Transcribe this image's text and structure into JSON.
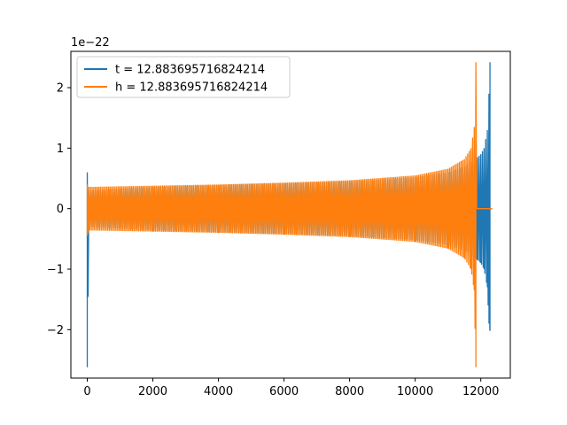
{
  "chart_data": {
    "type": "line",
    "title": "",
    "xlabel": "",
    "ylabel": "",
    "xlim": [
      -500,
      12900
    ],
    "ylim": [
      -2.8,
      2.6
    ],
    "y_scale_label": "1e−22",
    "x_ticks": [
      0,
      2000,
      4000,
      6000,
      8000,
      10000,
      12000
    ],
    "y_ticks": [
      -2,
      -1,
      0,
      1,
      2
    ],
    "x_tick_labels": [
      "0",
      "2000",
      "4000",
      "6000",
      "8000",
      "10000",
      "12000"
    ],
    "y_tick_labels": [
      "−2",
      "−1",
      "0",
      "1",
      "2"
    ],
    "grid": false,
    "legend_position": "top-left",
    "series": [
      {
        "name": "t = 12.883695716824214",
        "color": "#1f77b4",
        "envelope": {
          "x": [
            0,
            50,
            2000,
            4000,
            6000,
            8000,
            10000,
            11000,
            11500,
            11850,
            11900,
            12000,
            12100,
            12200,
            12250,
            12280,
            12290
          ],
          "upper": [
            0.6,
            0.3,
            0.36,
            0.39,
            0.42,
            0.45,
            0.52,
            0.6,
            0.7,
            0.82,
            0.85,
            0.9,
            1.0,
            1.3,
            1.9,
            2.42,
            0.0
          ],
          "lower": [
            -2.62,
            -0.3,
            -0.36,
            -0.39,
            -0.42,
            -0.45,
            -0.52,
            -0.6,
            -0.7,
            -0.82,
            -0.85,
            -0.9,
            -1.0,
            -1.3,
            -1.9,
            -2.02,
            0.0
          ]
        }
      },
      {
        "name": "h = 12.883695716824214",
        "color": "#ff7f0e",
        "envelope": {
          "x": [
            0,
            50,
            2000,
            4000,
            6000,
            8000,
            10000,
            11000,
            11500,
            11700,
            11800,
            11850,
            11860,
            11870,
            12300
          ],
          "upper": [
            0.4,
            0.36,
            0.38,
            0.4,
            0.43,
            0.47,
            0.55,
            0.66,
            0.82,
            1.0,
            1.35,
            2.42,
            0.0,
            0.0,
            0.0
          ],
          "lower": [
            -0.45,
            -0.36,
            -0.38,
            -0.4,
            -0.43,
            -0.47,
            -0.55,
            -0.66,
            -0.82,
            -1.0,
            -1.35,
            -2.62,
            0.0,
            0.0,
            0.0
          ]
        }
      }
    ]
  }
}
